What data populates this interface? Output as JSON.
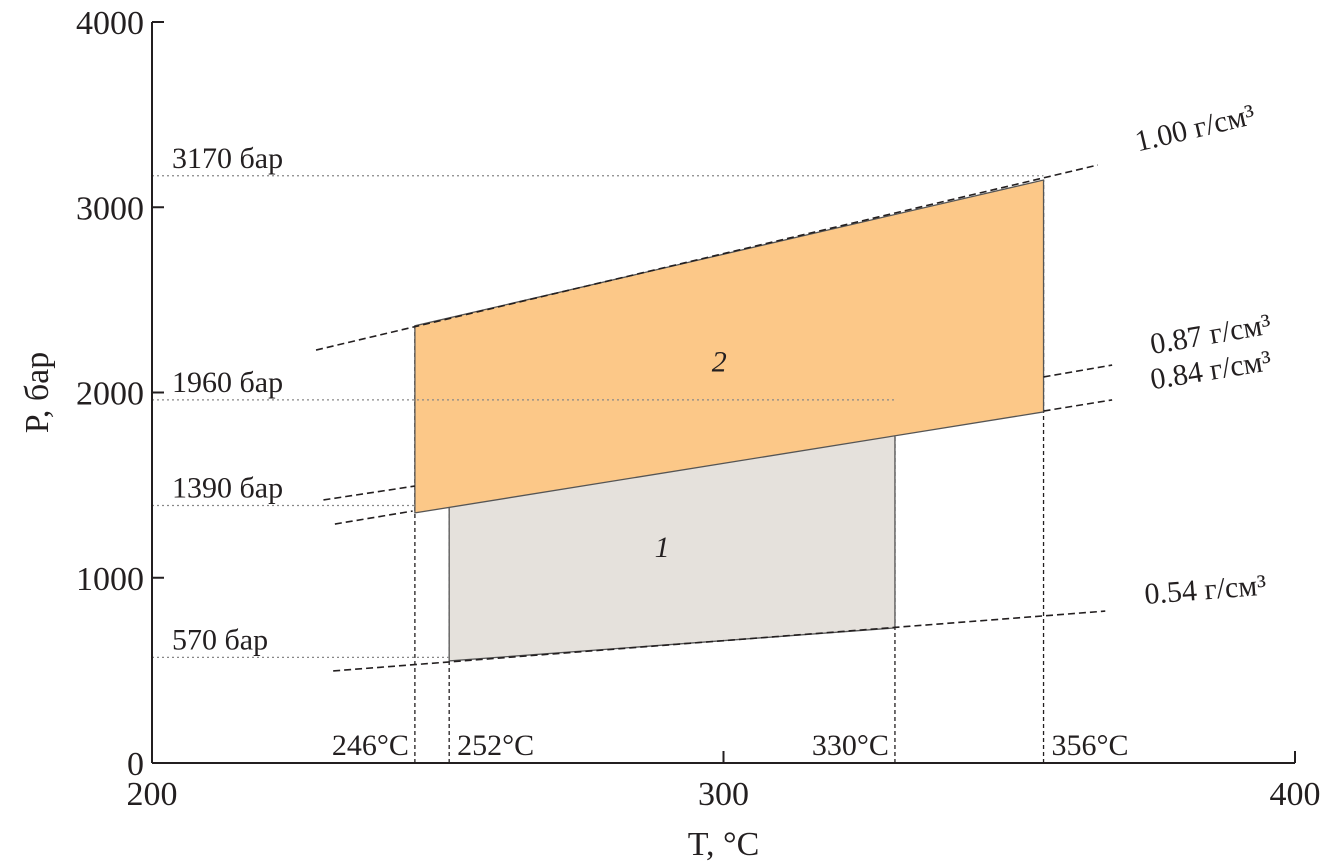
{
  "chart_data": {
    "type": "polygon",
    "xlabel": "T, °C",
    "ylabel": "P, бар",
    "xlim": [
      200,
      400
    ],
    "ylim": [
      0,
      4000
    ],
    "xticks": [
      200,
      300,
      400
    ],
    "yticks": [
      0,
      1000,
      2000,
      3000,
      4000
    ],
    "regions": [
      {
        "name": "1",
        "color": "#e5e1dc",
        "x": [
          252,
          330,
          330,
          252
        ],
        "y": [
          1533,
          1938,
          729,
          551
        ]
      },
      {
        "name": "2",
        "color": "#fcc888",
        "x": [
          246,
          356,
          356,
          246
        ],
        "y": [
          2360,
          3147,
          1895,
          1350
        ]
      }
    ],
    "isochores": [
      {
        "label": "1.00 г/см³",
        "x": [
          228.7,
          365.5
        ],
        "y": [
          2229,
          3228
        ]
      },
      {
        "label": "0.87 г/см³",
        "x": [
          230,
          246,
          null,
          356,
          368
        ],
        "y": [
          1420,
          1495,
          null,
          2084,
          2148
        ]
      },
      {
        "label": "0.84 г/см³",
        "x": [
          232,
          245.6,
          null,
          356,
          368
        ],
        "y": [
          1290,
          1360,
          null,
          1900,
          1960
        ]
      },
      {
        "label": "0.54 г/см³",
        "x": [
          231.7,
          366.8
        ],
        "y": [
          497,
          820
        ]
      }
    ],
    "h_lines": [
      {
        "value": 3170,
        "label": "3170 бар"
      },
      {
        "value": 1960,
        "label": "1960 бар"
      },
      {
        "value": 1390,
        "label": "1390 бар"
      },
      {
        "value": 570,
        "label": "570 бар"
      }
    ],
    "v_lines": [
      {
        "value": 246,
        "label": "246°C"
      },
      {
        "value": 252,
        "label": "252°C"
      },
      {
        "value": 330,
        "label": "330°C"
      },
      {
        "value": 356,
        "label": "356°C"
      }
    ]
  }
}
